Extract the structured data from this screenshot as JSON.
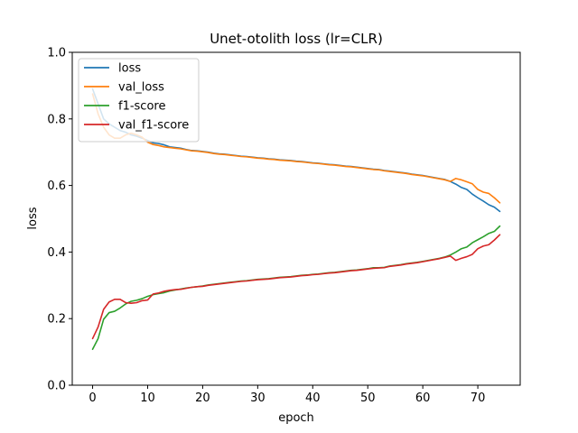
{
  "chart_data": {
    "type": "line",
    "title": "Unet-otolith loss (lr=CLR)",
    "xlabel": "epoch",
    "ylabel": "loss",
    "xlim": [
      -3.7,
      77.7
    ],
    "ylim": [
      0.0,
      1.0
    ],
    "xticks": [
      0,
      10,
      20,
      30,
      40,
      50,
      60,
      70
    ],
    "yticks": [
      0.0,
      0.2,
      0.4,
      0.6,
      0.8,
      1.0
    ],
    "ytick_labels": [
      "0.0",
      "0.2",
      "0.4",
      "0.6",
      "0.8",
      "1.0"
    ],
    "grid": false,
    "legend": "top-left",
    "series": [
      {
        "name": "loss",
        "color": "#1f77b4",
        "x": [
          0,
          1,
          2,
          3,
          4,
          5,
          6,
          7,
          8,
          9,
          10,
          11,
          12,
          13,
          14,
          15,
          16,
          17,
          18,
          19,
          20,
          21,
          22,
          23,
          24,
          25,
          26,
          27,
          28,
          29,
          30,
          31,
          32,
          33,
          34,
          35,
          36,
          37,
          38,
          39,
          40,
          41,
          42,
          43,
          44,
          45,
          46,
          47,
          48,
          49,
          50,
          51,
          52,
          53,
          54,
          55,
          56,
          57,
          58,
          59,
          60,
          61,
          62,
          63,
          64,
          65,
          66,
          67,
          68,
          69,
          70,
          71,
          72,
          73,
          74
        ],
        "y": [
          0.89,
          0.845,
          0.8,
          0.785,
          0.775,
          0.765,
          0.76,
          0.752,
          0.748,
          0.742,
          0.735,
          0.728,
          0.726,
          0.722,
          0.716,
          0.714,
          0.712,
          0.708,
          0.705,
          0.704,
          0.702,
          0.7,
          0.697,
          0.695,
          0.694,
          0.692,
          0.69,
          0.688,
          0.687,
          0.685,
          0.683,
          0.682,
          0.68,
          0.679,
          0.677,
          0.676,
          0.675,
          0.673,
          0.672,
          0.67,
          0.668,
          0.667,
          0.665,
          0.663,
          0.662,
          0.66,
          0.658,
          0.657,
          0.655,
          0.653,
          0.651,
          0.649,
          0.648,
          0.645,
          0.643,
          0.641,
          0.639,
          0.637,
          0.634,
          0.632,
          0.63,
          0.627,
          0.624,
          0.621,
          0.618,
          0.612,
          0.604,
          0.594,
          0.588,
          0.574,
          0.563,
          0.553,
          0.542,
          0.535,
          0.522
        ]
      },
      {
        "name": "val_loss",
        "color": "#ff7f0e",
        "x": [
          0,
          1,
          2,
          3,
          4,
          5,
          6,
          7,
          8,
          9,
          10,
          11,
          12,
          13,
          14,
          15,
          16,
          17,
          18,
          19,
          20,
          21,
          22,
          23,
          24,
          25,
          26,
          27,
          28,
          29,
          30,
          31,
          32,
          33,
          34,
          35,
          36,
          37,
          38,
          39,
          40,
          41,
          42,
          43,
          44,
          45,
          46,
          47,
          48,
          49,
          50,
          51,
          52,
          53,
          54,
          55,
          56,
          57,
          58,
          59,
          60,
          61,
          62,
          63,
          64,
          65,
          66,
          67,
          68,
          69,
          70,
          71,
          72,
          73,
          74
        ],
        "y": [
          0.875,
          0.815,
          0.775,
          0.752,
          0.742,
          0.742,
          0.752,
          0.757,
          0.752,
          0.745,
          0.73,
          0.723,
          0.72,
          0.716,
          0.714,
          0.712,
          0.71,
          0.707,
          0.704,
          0.703,
          0.701,
          0.699,
          0.696,
          0.694,
          0.693,
          0.691,
          0.689,
          0.687,
          0.686,
          0.684,
          0.682,
          0.681,
          0.679,
          0.678,
          0.676,
          0.675,
          0.674,
          0.672,
          0.671,
          0.669,
          0.667,
          0.666,
          0.664,
          0.662,
          0.661,
          0.659,
          0.657,
          0.656,
          0.654,
          0.652,
          0.65,
          0.648,
          0.647,
          0.644,
          0.642,
          0.64,
          0.638,
          0.636,
          0.633,
          0.631,
          0.629,
          0.626,
          0.623,
          0.62,
          0.617,
          0.612,
          0.621,
          0.617,
          0.611,
          0.605,
          0.588,
          0.58,
          0.576,
          0.563,
          0.548
        ]
      },
      {
        "name": "f1-score",
        "color": "#2ca02c",
        "x": [
          0,
          1,
          2,
          3,
          4,
          5,
          6,
          7,
          8,
          9,
          10,
          11,
          12,
          13,
          14,
          15,
          16,
          17,
          18,
          19,
          20,
          21,
          22,
          23,
          24,
          25,
          26,
          27,
          28,
          29,
          30,
          31,
          32,
          33,
          34,
          35,
          36,
          37,
          38,
          39,
          40,
          41,
          42,
          43,
          44,
          45,
          46,
          47,
          48,
          49,
          50,
          51,
          52,
          53,
          54,
          55,
          56,
          57,
          58,
          59,
          60,
          61,
          62,
          63,
          64,
          65,
          66,
          67,
          68,
          69,
          70,
          71,
          72,
          73,
          74
        ],
        "y": [
          0.108,
          0.14,
          0.198,
          0.218,
          0.222,
          0.232,
          0.244,
          0.252,
          0.255,
          0.26,
          0.267,
          0.272,
          0.275,
          0.278,
          0.283,
          0.286,
          0.289,
          0.292,
          0.294,
          0.296,
          0.298,
          0.301,
          0.303,
          0.305,
          0.307,
          0.309,
          0.311,
          0.313,
          0.314,
          0.316,
          0.318,
          0.319,
          0.32,
          0.322,
          0.324,
          0.325,
          0.326,
          0.328,
          0.33,
          0.331,
          0.333,
          0.334,
          0.336,
          0.338,
          0.339,
          0.341,
          0.343,
          0.345,
          0.346,
          0.348,
          0.35,
          0.353,
          0.353,
          0.354,
          0.358,
          0.36,
          0.362,
          0.365,
          0.367,
          0.369,
          0.372,
          0.375,
          0.378,
          0.381,
          0.385,
          0.391,
          0.4,
          0.41,
          0.415,
          0.428,
          0.437,
          0.446,
          0.456,
          0.462,
          0.478
        ]
      },
      {
        "name": "val_f1-score",
        "color": "#d62728",
        "x": [
          0,
          1,
          2,
          3,
          4,
          5,
          6,
          7,
          8,
          9,
          10,
          11,
          12,
          13,
          14,
          15,
          16,
          17,
          18,
          19,
          20,
          21,
          22,
          23,
          24,
          25,
          26,
          27,
          28,
          29,
          30,
          31,
          32,
          33,
          34,
          35,
          36,
          37,
          38,
          39,
          40,
          41,
          42,
          43,
          44,
          45,
          46,
          47,
          48,
          49,
          50,
          51,
          52,
          53,
          54,
          55,
          56,
          57,
          58,
          59,
          60,
          61,
          62,
          63,
          64,
          65,
          66,
          67,
          68,
          69,
          70,
          71,
          72,
          73,
          74
        ],
        "y": [
          0.14,
          0.175,
          0.228,
          0.25,
          0.258,
          0.258,
          0.248,
          0.246,
          0.248,
          0.254,
          0.256,
          0.274,
          0.277,
          0.282,
          0.285,
          0.287,
          0.288,
          0.291,
          0.294,
          0.296,
          0.297,
          0.3,
          0.302,
          0.304,
          0.306,
          0.308,
          0.31,
          0.312,
          0.313,
          0.315,
          0.317,
          0.318,
          0.319,
          0.321,
          0.323,
          0.324,
          0.325,
          0.327,
          0.329,
          0.33,
          0.332,
          0.333,
          0.335,
          0.337,
          0.338,
          0.34,
          0.342,
          0.344,
          0.345,
          0.347,
          0.349,
          0.351,
          0.352,
          0.353,
          0.357,
          0.359,
          0.361,
          0.364,
          0.366,
          0.368,
          0.371,
          0.374,
          0.377,
          0.38,
          0.384,
          0.388,
          0.375,
          0.381,
          0.386,
          0.393,
          0.41,
          0.418,
          0.422,
          0.436,
          0.452
        ]
      }
    ]
  }
}
